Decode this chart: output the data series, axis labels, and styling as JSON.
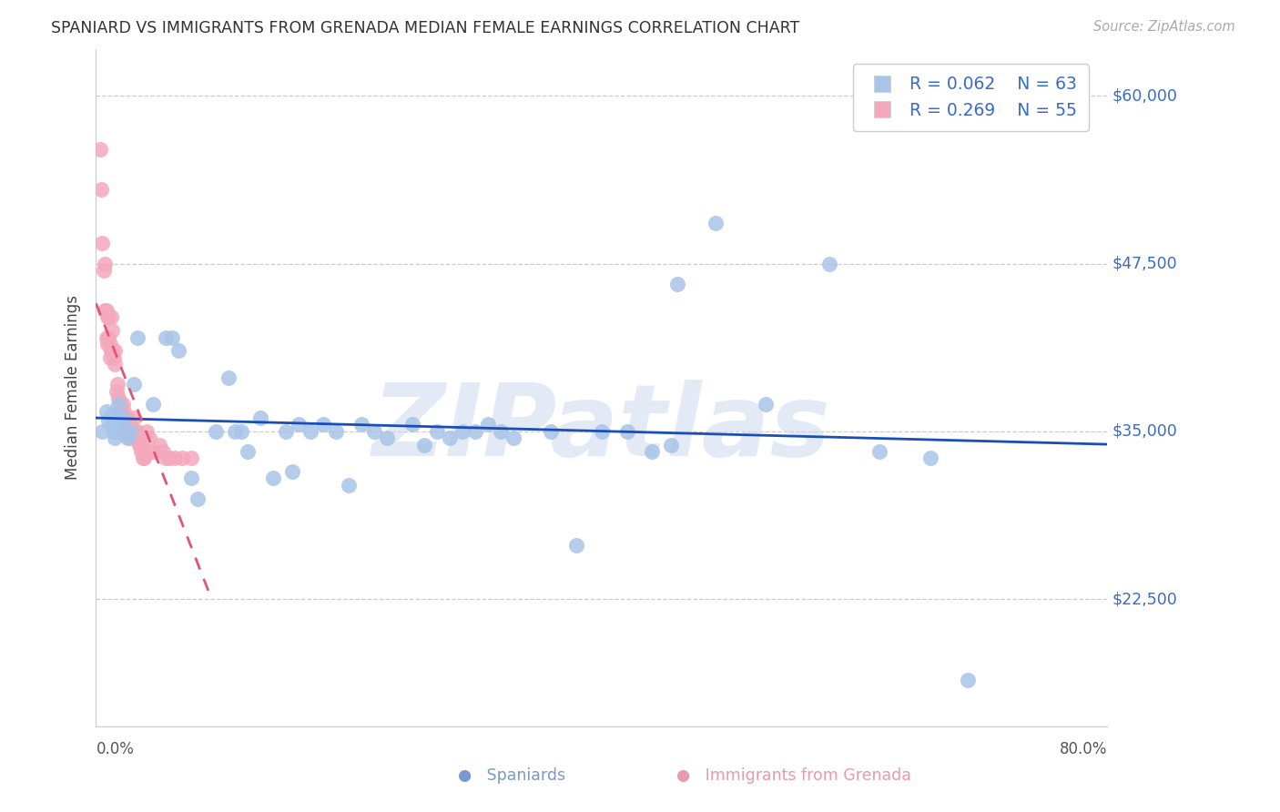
{
  "title": "SPANIARD VS IMMIGRANTS FROM GRENADA MEDIAN FEMALE EARNINGS CORRELATION CHART",
  "source": "Source: ZipAtlas.com",
  "ylabel": "Median Female Earnings",
  "ytick_vals": [
    22500,
    35000,
    47500,
    60000
  ],
  "ytick_labels": [
    "$22,500",
    "$35,000",
    "$47,500",
    "$60,000"
  ],
  "xmin": 0.0,
  "xmax": 0.8,
  "ymin": 13000,
  "ymax": 63500,
  "blue_R": "R = 0.062",
  "blue_N": "N = 63",
  "pink_R": "R = 0.269",
  "pink_N": "N = 55",
  "blue_dot_color": "#a8c4e8",
  "pink_dot_color": "#f4a8bc",
  "blue_line_color": "#1a4db8",
  "pink_line_color": "#e05575",
  "grid_color": "#cccccc",
  "watermark_color": "#ccdaee",
  "watermark_text": "ZIPatlas",
  "legend_label_blue": "Spaniards",
  "legend_label_pink": "Immigrants from Grenada",
  "blue_scatter_x": [
    0.005,
    0.008,
    0.01,
    0.012,
    0.013,
    0.014,
    0.015,
    0.016,
    0.017,
    0.018,
    0.02,
    0.021,
    0.022,
    0.023,
    0.025,
    0.027,
    0.03,
    0.033,
    0.045,
    0.055,
    0.06,
    0.065,
    0.075,
    0.08,
    0.095,
    0.105,
    0.11,
    0.115,
    0.12,
    0.13,
    0.14,
    0.15,
    0.155,
    0.16,
    0.17,
    0.18,
    0.19,
    0.2,
    0.21,
    0.22,
    0.23,
    0.25,
    0.26,
    0.27,
    0.28,
    0.29,
    0.3,
    0.31,
    0.32,
    0.33,
    0.36,
    0.38,
    0.4,
    0.42,
    0.44,
    0.455,
    0.46,
    0.49,
    0.53,
    0.58,
    0.62,
    0.66,
    0.69
  ],
  "blue_scatter_y": [
    35000,
    36500,
    35800,
    36200,
    35500,
    35000,
    34500,
    35000,
    36000,
    37000,
    35500,
    36000,
    35200,
    34800,
    34500,
    35000,
    38500,
    42000,
    37000,
    42000,
    42000,
    41000,
    31500,
    30000,
    35000,
    39000,
    35000,
    35000,
    33500,
    36000,
    31500,
    35000,
    32000,
    35500,
    35000,
    35500,
    35000,
    31000,
    35500,
    35000,
    34500,
    35500,
    34000,
    35000,
    34500,
    35000,
    35000,
    35500,
    35000,
    34500,
    35000,
    26500,
    35000,
    35000,
    33500,
    34000,
    46000,
    50500,
    37000,
    47500,
    33500,
    33000,
    16500
  ],
  "pink_scatter_x": [
    0.003,
    0.004,
    0.005,
    0.006,
    0.007,
    0.007,
    0.008,
    0.008,
    0.009,
    0.009,
    0.01,
    0.01,
    0.011,
    0.011,
    0.012,
    0.012,
    0.013,
    0.013,
    0.014,
    0.015,
    0.015,
    0.016,
    0.017,
    0.018,
    0.019,
    0.02,
    0.021,
    0.022,
    0.023,
    0.024,
    0.025,
    0.026,
    0.027,
    0.028,
    0.029,
    0.03,
    0.031,
    0.032,
    0.033,
    0.034,
    0.035,
    0.036,
    0.037,
    0.038,
    0.04,
    0.042,
    0.043,
    0.045,
    0.05,
    0.053,
    0.055,
    0.058,
    0.062,
    0.068,
    0.075
  ],
  "pink_scatter_y": [
    56000,
    53000,
    49000,
    47000,
    44000,
    47500,
    44000,
    42000,
    43500,
    41500,
    42000,
    43500,
    41500,
    40500,
    41000,
    43500,
    42500,
    41000,
    40500,
    40000,
    41000,
    38000,
    38500,
    37500,
    37000,
    36500,
    37000,
    36500,
    35500,
    36000,
    35000,
    35500,
    34500,
    35000,
    35000,
    36000,
    35000,
    34500,
    35000,
    34000,
    34000,
    33500,
    33000,
    33000,
    35000,
    34500,
    33500,
    33500,
    34000,
    33500,
    33000,
    33000,
    33000,
    33000,
    33000
  ]
}
